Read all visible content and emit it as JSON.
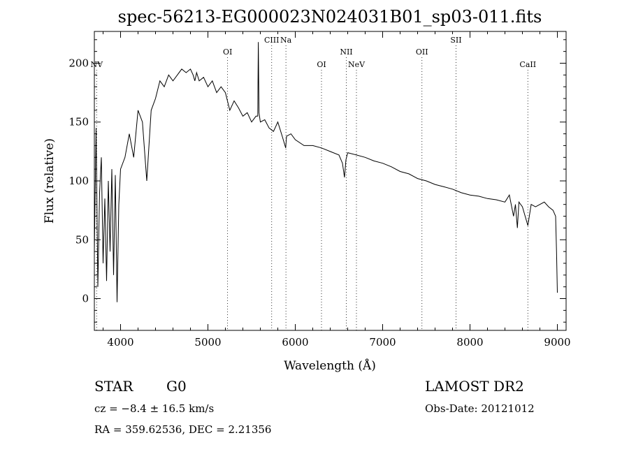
{
  "chart_data": {
    "type": "line",
    "title": "spec-56213-EG000023N024031B01_sp03-011.fits",
    "xlabel": "Wavelength (Å)",
    "ylabel": "Flux (relative)",
    "xlim": [
      3700,
      9100
    ],
    "ylim": [
      -27,
      227
    ],
    "xticks": [
      4000,
      5000,
      6000,
      7000,
      8000,
      9000
    ],
    "yticks": [
      0,
      50,
      100,
      150,
      200
    ],
    "grid": false,
    "spectrum": {
      "x": [
        3700,
        3720,
        3740,
        3760,
        3780,
        3800,
        3820,
        3840,
        3860,
        3880,
        3900,
        3920,
        3940,
        3960,
        3980,
        4000,
        4050,
        4100,
        4150,
        4200,
        4250,
        4300,
        4350,
        4400,
        4450,
        4500,
        4550,
        4600,
        4650,
        4700,
        4750,
        4800,
        4830,
        4850,
        4870,
        4900,
        4950,
        5000,
        5050,
        5100,
        5150,
        5200,
        5250,
        5300,
        5350,
        5400,
        5450,
        5500,
        5550,
        5570,
        5577,
        5585,
        5600,
        5650,
        5700,
        5750,
        5800,
        5850,
        5890,
        5900,
        5950,
        6000,
        6100,
        6200,
        6300,
        6400,
        6500,
        6540,
        6563,
        6580,
        6600,
        6700,
        6800,
        6900,
        7000,
        7100,
        7200,
        7300,
        7400,
        7500,
        7600,
        7700,
        7800,
        7900,
        8000,
        8100,
        8200,
        8300,
        8400,
        8450,
        8498,
        8520,
        8542,
        8560,
        8600,
        8662,
        8700,
        8750,
        8800,
        8850,
        8900,
        8950,
        8980,
        8990,
        9000
      ],
      "y": [
        40,
        145,
        10,
        90,
        120,
        30,
        85,
        15,
        100,
        40,
        110,
        20,
        105,
        -3,
        80,
        110,
        120,
        140,
        120,
        160,
        150,
        100,
        160,
        170,
        185,
        180,
        190,
        185,
        190,
        195,
        192,
        195,
        190,
        185,
        192,
        185,
        188,
        180,
        185,
        175,
        180,
        175,
        160,
        168,
        162,
        155,
        158,
        150,
        155,
        155,
        218,
        158,
        150,
        152,
        145,
        142,
        150,
        138,
        128,
        138,
        140,
        135,
        130,
        130,
        128,
        125,
        122,
        115,
        103,
        118,
        124,
        122,
        120,
        117,
        115,
        112,
        108,
        106,
        102,
        100,
        97,
        95,
        93,
        90,
        88,
        87,
        85,
        84,
        82,
        88,
        70,
        80,
        60,
        82,
        78,
        62,
        80,
        78,
        80,
        82,
        78,
        75,
        70,
        40,
        5
      ]
    },
    "lines": [
      {
        "name": "NV",
        "wavelength": 3726,
        "tier": "low"
      },
      {
        "name": "OI",
        "wavelength": 5225,
        "tier": "mid"
      },
      {
        "name": "CIII",
        "wavelength": 5730,
        "tier": "high"
      },
      {
        "name": "Na",
        "wavelength": 5893,
        "tier": "high"
      },
      {
        "name": "OI",
        "wavelength": 6300,
        "tier": "low"
      },
      {
        "name": "NII",
        "wavelength": 6584,
        "tier": "mid"
      },
      {
        "name": "NeV",
        "wavelength": 6700,
        "tier": "low"
      },
      {
        "name": "OII",
        "wavelength": 7450,
        "tier": "mid"
      },
      {
        "name": "SII",
        "wavelength": 7840,
        "tier": "high"
      },
      {
        "name": "CaII",
        "wavelength": 8662,
        "tier": "low"
      }
    ]
  },
  "footer": {
    "object_class": "STAR",
    "subclass": "G0",
    "survey": "LAMOST DR2",
    "redshift": "cz = −8.4 ± 16.5 km/s",
    "obs_date": "Obs-Date: 20121012",
    "coordinates": "RA = 359.62536, DEC =   2.21356"
  }
}
